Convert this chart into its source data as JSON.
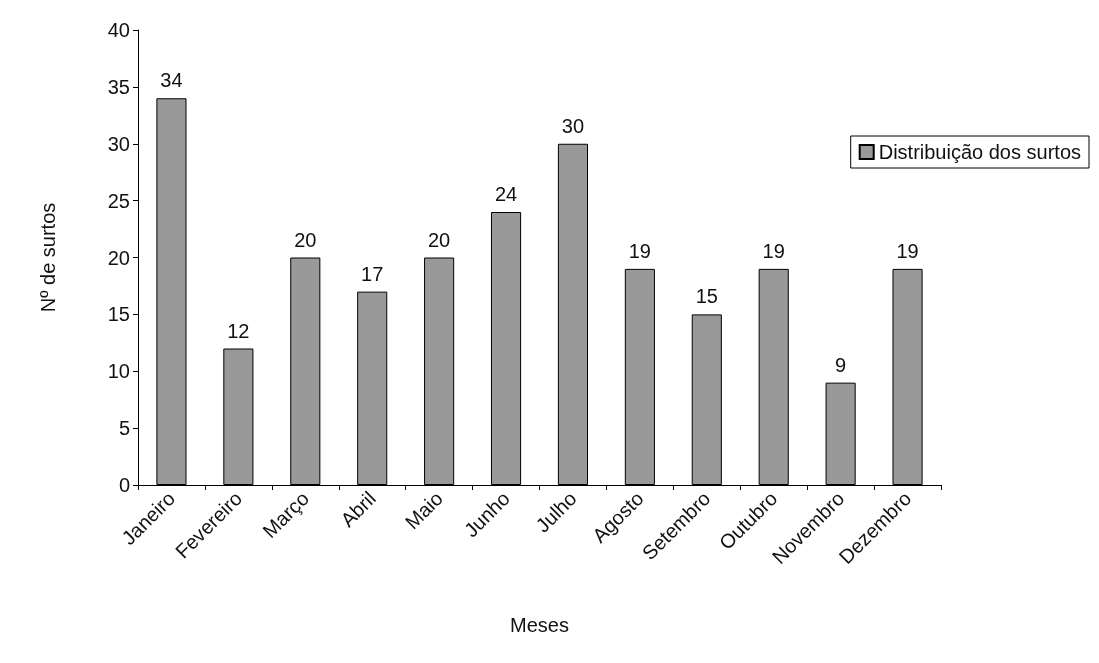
{
  "chart_data": {
    "type": "bar",
    "xlabel": "Meses",
    "ylabel": "Nº de surtos",
    "categories": [
      "Janeiro",
      "Fevereiro",
      "Março",
      "Abril",
      "Maio",
      "Junho",
      "Julho",
      "Agosto",
      "Setembro",
      "Outubro",
      "Novembro",
      "Dezembro"
    ],
    "series": [
      {
        "name": "Distribuição dos surtos",
        "color": "#999999",
        "values": [
          34,
          12,
          20,
          17,
          20,
          24,
          30,
          19,
          15,
          19,
          9,
          19
        ]
      }
    ],
    "ylim": [
      0,
      40
    ],
    "yticks": [
      0,
      5,
      10,
      15,
      20,
      25,
      30,
      35,
      40
    ],
    "grid": false,
    "legend": "top right",
    "data_labels": true
  }
}
